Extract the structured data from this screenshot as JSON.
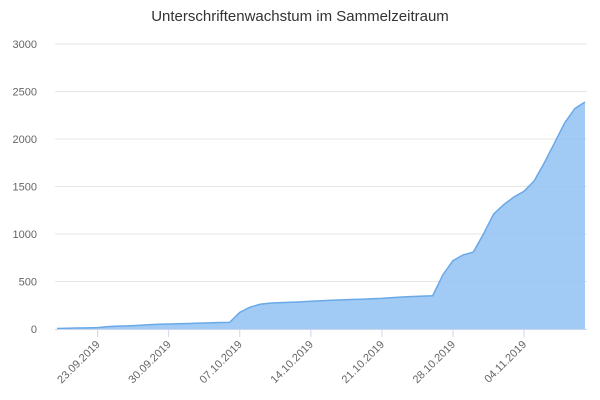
{
  "chart_data": {
    "type": "area",
    "title": "Unterschriftenwachstum im Sammelzeitraum",
    "xlabel": "",
    "ylabel": "",
    "ylim": [
      0,
      3000
    ],
    "yticks": [
      0,
      500,
      1000,
      1500,
      2000,
      2500,
      3000
    ],
    "grid": true,
    "legend": "none",
    "colors": {
      "fill": "#90c1f2",
      "line": "#6aa9e8"
    },
    "xtick_labels": [
      {
        "label": "23.09.2019",
        "index": 4
      },
      {
        "label": "30.09.2019",
        "index": 11
      },
      {
        "label": "07.10.2019",
        "index": 18
      },
      {
        "label": "14.10.2019",
        "index": 25
      },
      {
        "label": "21.10.2019",
        "index": 32
      },
      {
        "label": "28.10.2019",
        "index": 39
      },
      {
        "label": "04.11.2019",
        "index": 46
      }
    ],
    "series": [
      {
        "values": [
          5,
          8,
          10,
          12,
          15,
          25,
          30,
          33,
          38,
          45,
          50,
          52,
          55,
          58,
          62,
          65,
          68,
          70,
          175,
          230,
          260,
          272,
          278,
          282,
          286,
          292,
          298,
          303,
          307,
          310,
          313,
          318,
          322,
          330,
          337,
          342,
          346,
          350,
          570,
          720,
          780,
          810,
          1000,
          1210,
          1310,
          1390,
          1450,
          1560,
          1750,
          1960,
          2170,
          2320,
          2390
        ]
      }
    ]
  }
}
